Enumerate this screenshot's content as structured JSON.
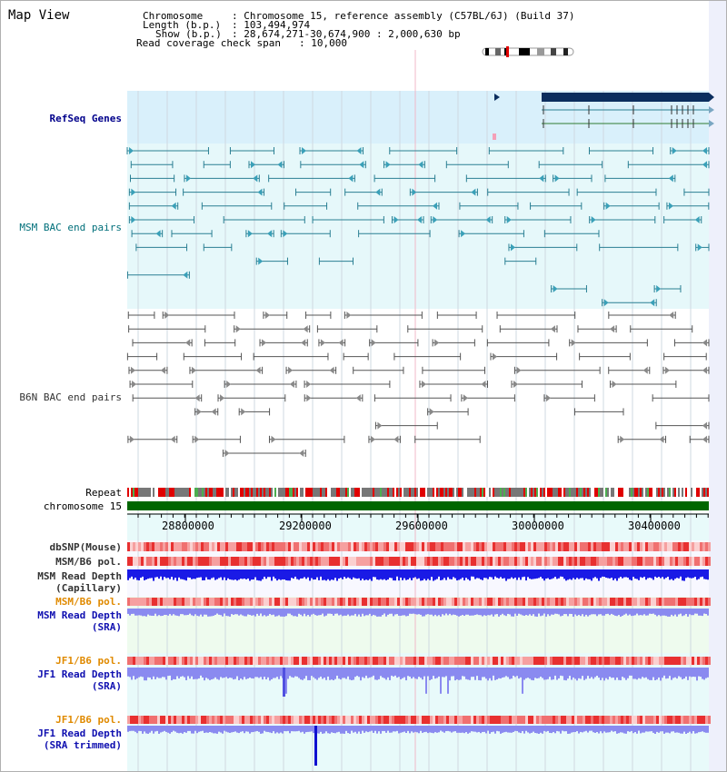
{
  "map_title": "Map View",
  "info": {
    "chromosome_key": "Chromosome",
    "chromosome_val": ": Chromosome 15, reference assembly (C57BL/6J) (Build 37)",
    "length_key": "Length (b.p.)",
    "length_val": ": 103,494,974",
    "show_key": "Show (b.p.)",
    "show_val": ": 28,674,271-30,674,900 : 2,000,630 bp",
    "coverage_key": "Read coverage check span",
    "coverage_val": ": 10,000"
  },
  "tracks": {
    "refseq": "RefSeq Genes",
    "msm_bac": "MSM BAC end pairs",
    "b6n_bac": "B6N BAC end pairs",
    "repeat": "Repeat",
    "chromosome": "chromosome 15",
    "dbsnp": "dbSNP(Mouse)",
    "msm_b6_pol_1": "MSM/B6 pol.",
    "msm_depth_cap_1": "MSM Read Depth",
    "msm_depth_cap_2": "(Capillary)",
    "msm_b6_pol_2": "MSM/B6 pol.",
    "msm_depth_sra_1": "MSM Read Depth",
    "msm_depth_sra_2": "(SRA)",
    "jf1_b6_pol_1": "JF1/B6 pol.",
    "jf1_depth_sra_1": "JF1 Read Depth",
    "jf1_depth_sra_2": "(SRA)",
    "jf1_b6_pol_2": "JF1/B6 pol.",
    "jf1_depth_trim_1": "JF1 Read Depth",
    "jf1_depth_trim_2": "(SRA trimmed)"
  },
  "axis_ticks": [
    "28800000",
    "29200000",
    "29600000",
    "30000000",
    "30400000"
  ],
  "colors": {
    "refseq_bg": "#d9f0fb",
    "msm_bg": "#e6f8fa",
    "teal": "#2a7f93",
    "gene_navy": "#0b2e5e",
    "chrom_green": "#006600",
    "snp_red": "#e43a3a",
    "depth_blue": "#1a1ae6",
    "depth_light": "#8a8af0"
  }
}
